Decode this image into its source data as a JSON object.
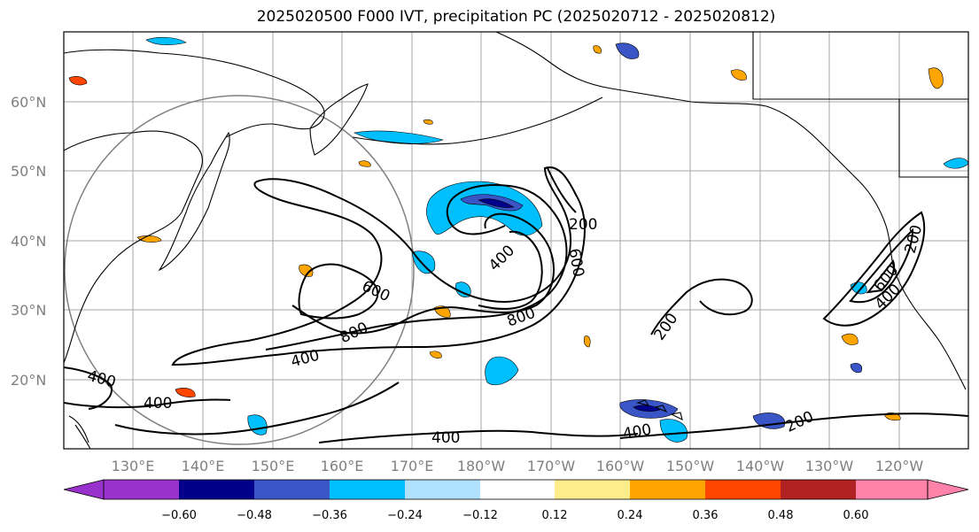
{
  "title": "2025020500 F000 IVT, precipitation PC (2025020712 - 2025020812)",
  "map": {
    "lat_labels": [
      "60°N",
      "50°N",
      "40°N",
      "30°N",
      "20°N"
    ],
    "lon_labels": [
      "130°E",
      "140°E",
      "150°E",
      "160°E",
      "170°E",
      "180°W",
      "170°W",
      "160°W",
      "150°W",
      "140°W",
      "130°W",
      "120°W"
    ],
    "ivt_contour_labels": [
      "200",
      "400",
      "600",
      "800",
      "600",
      "400",
      "400",
      "400",
      "400",
      "600",
      "800",
      "400",
      "200",
      "200",
      "400",
      "200"
    ],
    "ivt_levels": [
      200,
      400,
      600,
      800
    ],
    "contour_color": "#000000",
    "grid_color": "#a6a6a6",
    "coast_color": "#000000"
  },
  "colorbar": {
    "ticks": [
      "−0.60",
      "−0.48",
      "−0.36",
      "−0.24",
      "−0.12",
      "0.12",
      "0.24",
      "0.36",
      "0.48",
      "0.60"
    ],
    "colors": [
      "#9932cc",
      "#00008b",
      "#3a55c6",
      "#00bfff",
      "#b0e2ff",
      "#ffffff",
      "#ffec8b",
      "#ffa500",
      "#ff4500",
      "#b22222",
      "#ff82ab"
    ]
  }
}
